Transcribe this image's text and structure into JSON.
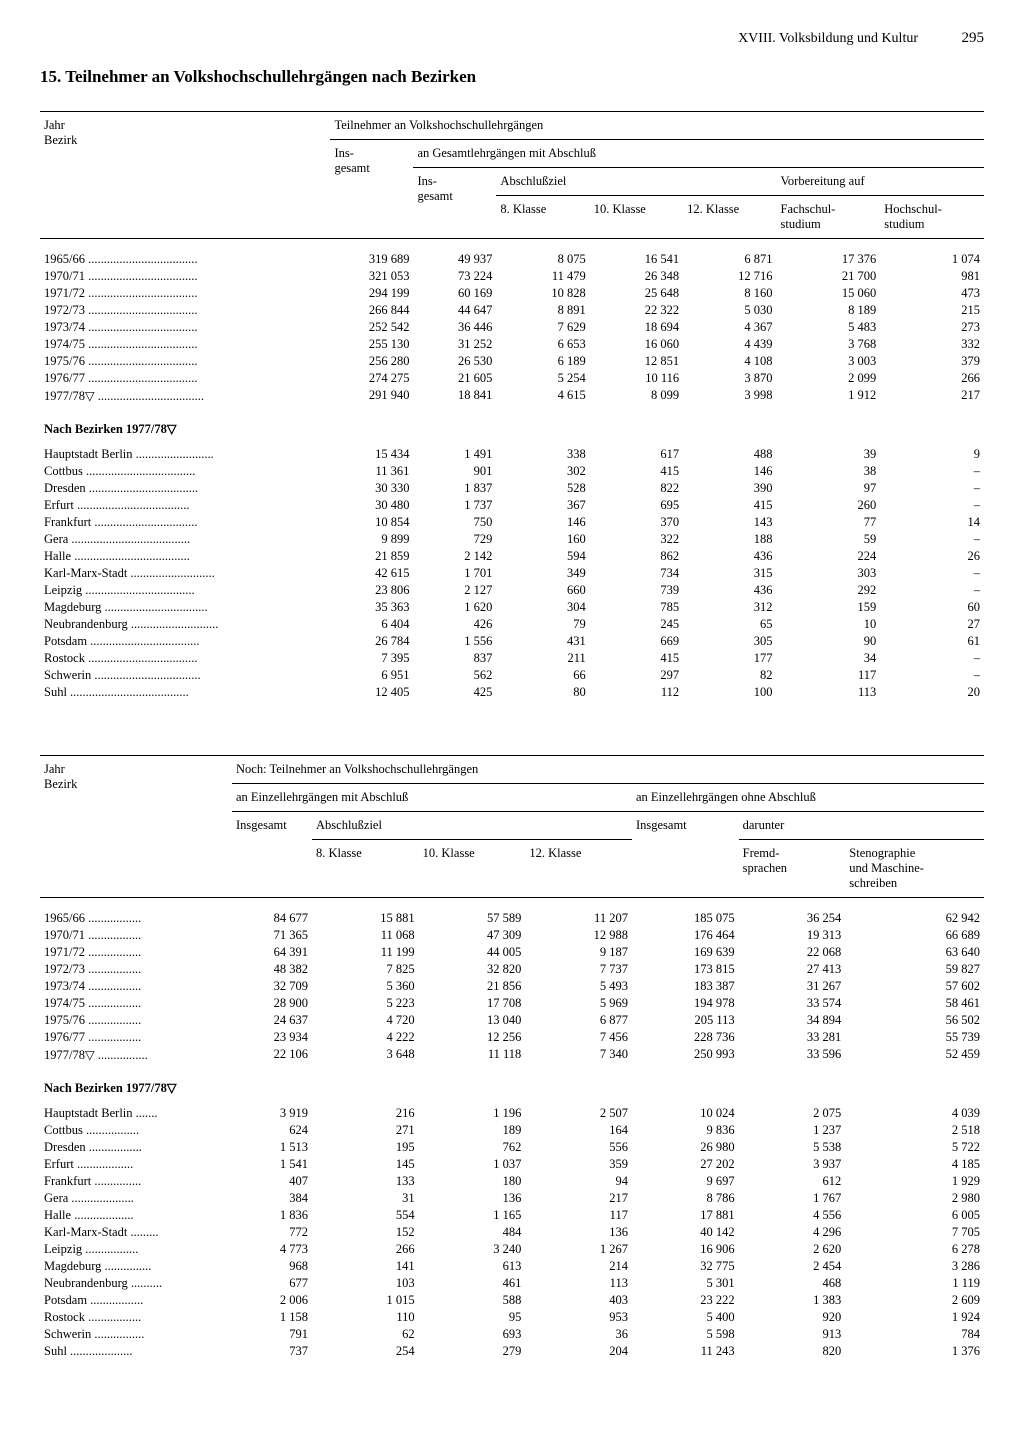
{
  "header": {
    "chapter": "XVIII. Volksbildung und Kultur",
    "page": "295"
  },
  "title": "15. Teilnehmer an Volkshochschullehrgängen nach Bezirken",
  "table1": {
    "head": {
      "col_label": "Jahr\nBezirk",
      "span_main": "Teilnehmer an Volkshochschullehrgängen",
      "insgesamt": "Ins-\ngesamt",
      "span_gesamt": "an Gesamtlehrgängen mit Abschluß",
      "sub_insgesamt": "Ins-\ngesamt",
      "span_abschlussziel": "Abschlußziel",
      "span_vorbereitung": "Vorbereitung auf",
      "k8": "8. Klasse",
      "k10": "10. Klasse",
      "k12": "12. Klasse",
      "fach": "Fachschul-\nstudium",
      "hoch": "Hochschul-\nstudium"
    },
    "years": [
      {
        "label": "1965/66",
        "v": [
          "319 689",
          "49 937",
          "8 075",
          "16 541",
          "6 871",
          "17 376",
          "1 074"
        ]
      },
      {
        "label": "1970/71",
        "v": [
          "321 053",
          "73 224",
          "11 479",
          "26 348",
          "12 716",
          "21 700",
          "981"
        ]
      },
      {
        "label": "1971/72",
        "v": [
          "294 199",
          "60 169",
          "10 828",
          "25 648",
          "8 160",
          "15 060",
          "473"
        ]
      },
      {
        "label": "1972/73",
        "v": [
          "266 844",
          "44 647",
          "8 891",
          "22 322",
          "5 030",
          "8 189",
          "215"
        ]
      },
      {
        "label": "1973/74",
        "v": [
          "252 542",
          "36 446",
          "7 629",
          "18 694",
          "4 367",
          "5 483",
          "273"
        ]
      },
      {
        "label": "1974/75",
        "v": [
          "255 130",
          "31 252",
          "6 653",
          "16 060",
          "4 439",
          "3 768",
          "332"
        ]
      },
      {
        "label": "1975/76",
        "v": [
          "256 280",
          "26 530",
          "6 189",
          "12 851",
          "4 108",
          "3 003",
          "379"
        ]
      },
      {
        "label": "1976/77",
        "v": [
          "274 275",
          "21 605",
          "5 254",
          "10 116",
          "3 870",
          "2 099",
          "266"
        ]
      },
      {
        "label": "1977/78▽",
        "v": [
          "291 940",
          "18 841",
          "4 615",
          "8 099",
          "3 998",
          "1 912",
          "217"
        ]
      }
    ],
    "bezirke_title": "Nach Bezirken 1977/78▽",
    "bezirke": [
      {
        "label": "Hauptstadt Berlin",
        "v": [
          "15 434",
          "1 491",
          "338",
          "617",
          "488",
          "39",
          "9"
        ]
      },
      {
        "label": "Cottbus",
        "v": [
          "11 361",
          "901",
          "302",
          "415",
          "146",
          "38",
          "–"
        ]
      },
      {
        "label": "Dresden",
        "v": [
          "30 330",
          "1 837",
          "528",
          "822",
          "390",
          "97",
          "–"
        ]
      },
      {
        "label": "Erfurt",
        "v": [
          "30 480",
          "1 737",
          "367",
          "695",
          "415",
          "260",
          "–"
        ]
      },
      {
        "label": "Frankfurt",
        "v": [
          "10 854",
          "750",
          "146",
          "370",
          "143",
          "77",
          "14"
        ]
      },
      {
        "label": "Gera",
        "v": [
          "9 899",
          "729",
          "160",
          "322",
          "188",
          "59",
          "–"
        ]
      },
      {
        "label": "Halle",
        "v": [
          "21 859",
          "2 142",
          "594",
          "862",
          "436",
          "224",
          "26"
        ]
      },
      {
        "label": "Karl-Marx-Stadt",
        "v": [
          "42 615",
          "1 701",
          "349",
          "734",
          "315",
          "303",
          "–"
        ]
      },
      {
        "label": "Leipzig",
        "v": [
          "23 806",
          "2 127",
          "660",
          "739",
          "436",
          "292",
          "–"
        ]
      },
      {
        "label": "Magdeburg",
        "v": [
          "35 363",
          "1 620",
          "304",
          "785",
          "312",
          "159",
          "60"
        ]
      },
      {
        "label": "Neubrandenburg",
        "v": [
          "6 404",
          "426",
          "79",
          "245",
          "65",
          "10",
          "27"
        ]
      },
      {
        "label": "Potsdam",
        "v": [
          "26 784",
          "1 556",
          "431",
          "669",
          "305",
          "90",
          "61"
        ]
      },
      {
        "label": "Rostock",
        "v": [
          "7 395",
          "837",
          "211",
          "415",
          "177",
          "34",
          "–"
        ]
      },
      {
        "label": "Schwerin",
        "v": [
          "6 951",
          "562",
          "66",
          "297",
          "82",
          "117",
          "–"
        ]
      },
      {
        "label": "Suhl",
        "v": [
          "12 405",
          "425",
          "80",
          "112",
          "100",
          "113",
          "20"
        ]
      }
    ]
  },
  "table2": {
    "head": {
      "col_label": "Jahr\nBezirk",
      "span_main": "Noch: Teilnehmer an Volkshochschullehrgängen",
      "span_mit": "an Einzellehrgängen mit Abschluß",
      "span_ohne": "an Einzellehrgängen ohne Abschluß",
      "insgesamt": "Insgesamt",
      "abschlussziel": "Abschlußziel",
      "darunter": "darunter",
      "k8": "8. Klasse",
      "k10": "10. Klasse",
      "k12": "12. Klasse",
      "insgesamt2": "Insgesamt",
      "fremd": "Fremd-\nsprachen",
      "steno": "Stenographie\nund Maschine-\nschreiben"
    },
    "years": [
      {
        "label": "1965/66",
        "v": [
          "84 677",
          "15 881",
          "57 589",
          "11 207",
          "185 075",
          "36 254",
          "62 942"
        ]
      },
      {
        "label": "1970/71",
        "v": [
          "71 365",
          "11 068",
          "47 309",
          "12 988",
          "176 464",
          "19 313",
          "66 689"
        ]
      },
      {
        "label": "1971/72",
        "v": [
          "64 391",
          "11 199",
          "44 005",
          "9 187",
          "169 639",
          "22 068",
          "63 640"
        ]
      },
      {
        "label": "1972/73",
        "v": [
          "48 382",
          "7 825",
          "32 820",
          "7 737",
          "173 815",
          "27 413",
          "59 827"
        ]
      },
      {
        "label": "1973/74",
        "v": [
          "32 709",
          "5 360",
          "21 856",
          "5 493",
          "183 387",
          "31 267",
          "57 602"
        ]
      },
      {
        "label": "1974/75",
        "v": [
          "28 900",
          "5 223",
          "17 708",
          "5 969",
          "194 978",
          "33 574",
          "58 461"
        ]
      },
      {
        "label": "1975/76",
        "v": [
          "24 637",
          "4 720",
          "13 040",
          "6 877",
          "205 113",
          "34 894",
          "56 502"
        ]
      },
      {
        "label": "1976/77",
        "v": [
          "23 934",
          "4 222",
          "12 256",
          "7 456",
          "228 736",
          "33 281",
          "55 739"
        ]
      },
      {
        "label": "1977/78▽",
        "v": [
          "22 106",
          "3 648",
          "11 118",
          "7 340",
          "250 993",
          "33 596",
          "52 459"
        ]
      }
    ],
    "bezirke_title": "Nach Bezirken 1977/78▽",
    "bezirke": [
      {
        "label": "Hauptstadt Berlin",
        "v": [
          "3 919",
          "216",
          "1 196",
          "2 507",
          "10 024",
          "2 075",
          "4 039"
        ]
      },
      {
        "label": "Cottbus",
        "v": [
          "624",
          "271",
          "189",
          "164",
          "9 836",
          "1 237",
          "2 518"
        ]
      },
      {
        "label": "Dresden",
        "v": [
          "1 513",
          "195",
          "762",
          "556",
          "26 980",
          "5 538",
          "5 722"
        ]
      },
      {
        "label": "Erfurt",
        "v": [
          "1 541",
          "145",
          "1 037",
          "359",
          "27 202",
          "3 937",
          "4 185"
        ]
      },
      {
        "label": "Frankfurt",
        "v": [
          "407",
          "133",
          "180",
          "94",
          "9 697",
          "612",
          "1 929"
        ]
      },
      {
        "label": "Gera",
        "v": [
          "384",
          "31",
          "136",
          "217",
          "8 786",
          "1 767",
          "2 980"
        ]
      },
      {
        "label": "Halle",
        "v": [
          "1 836",
          "554",
          "1 165",
          "117",
          "17 881",
          "4 556",
          "6 005"
        ]
      },
      {
        "label": "Karl-Marx-Stadt",
        "v": [
          "772",
          "152",
          "484",
          "136",
          "40 142",
          "4 296",
          "7 705"
        ]
      },
      {
        "label": "Leipzig",
        "v": [
          "4 773",
          "266",
          "3 240",
          "1 267",
          "16 906",
          "2 620",
          "6 278"
        ]
      },
      {
        "label": "Magdeburg",
        "v": [
          "968",
          "141",
          "613",
          "214",
          "32 775",
          "2 454",
          "3 286"
        ]
      },
      {
        "label": "Neubrandenburg",
        "v": [
          "677",
          "103",
          "461",
          "113",
          "5 301",
          "468",
          "1 119"
        ]
      },
      {
        "label": "Potsdam",
        "v": [
          "2 006",
          "1 015",
          "588",
          "403",
          "23 222",
          "1 383",
          "2 609"
        ]
      },
      {
        "label": "Rostock",
        "v": [
          "1 158",
          "110",
          "95",
          "953",
          "5 400",
          "920",
          "1 924"
        ]
      },
      {
        "label": "Schwerin",
        "v": [
          "791",
          "62",
          "693",
          "36",
          "5 598",
          "913",
          "784"
        ]
      },
      {
        "label": "Suhl",
        "v": [
          "737",
          "254",
          "279",
          "204",
          "11 243",
          "820",
          "1 376"
        ]
      }
    ]
  }
}
